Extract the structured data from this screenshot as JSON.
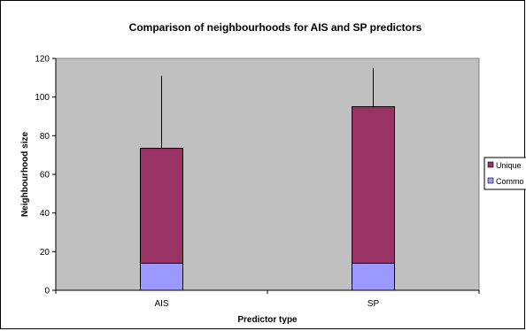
{
  "chart_data": {
    "type": "bar",
    "stacked": true,
    "title": "Comparison of neighbourhoods for AIS and SP predictors",
    "xlabel": "Predictor type",
    "ylabel": "Neighbourhood size",
    "categories": [
      "AIS",
      "SP"
    ],
    "series": [
      {
        "name": "Common",
        "values": [
          14,
          14
        ],
        "color": "#9999ff"
      },
      {
        "name": "Unique",
        "values": [
          59.5,
          81
        ],
        "color": "#993366"
      }
    ],
    "error_top": [
      111,
      115
    ],
    "ylim": [
      0,
      120
    ],
    "yticks": [
      0,
      20,
      40,
      60,
      80,
      100,
      120
    ],
    "grid": false,
    "plot_background": "#c0c0c0",
    "legend": {
      "position": "right",
      "order": [
        "Unique",
        "Common"
      ],
      "labels": [
        "Unique",
        "Commo"
      ]
    }
  }
}
